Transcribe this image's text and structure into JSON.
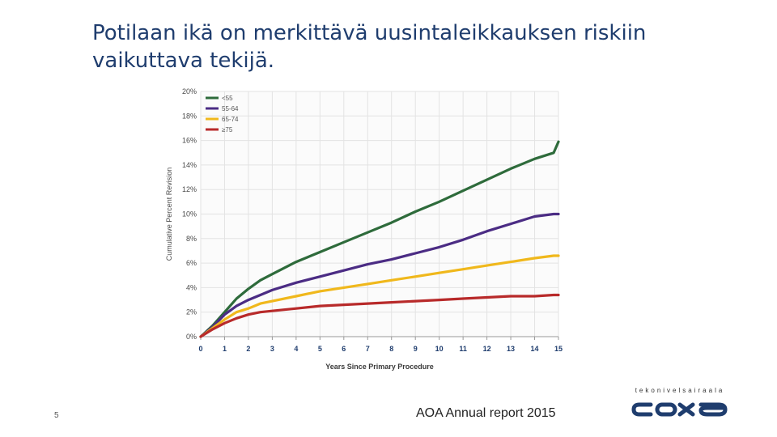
{
  "slide": {
    "title": "Potilaan ikä on merkittävä uusintaleikkauksen riskiin vaikuttava tekijä.",
    "page_number": "5",
    "source": "AOA Annual report 2015"
  },
  "logo": {
    "tagline": "tekonivelsairaala",
    "mark_text": "coxa",
    "color": "#1f3d6e"
  },
  "chart_data": {
    "type": "line",
    "title": "",
    "xlabel": "Years Since Primary Procedure",
    "ylabel": "Cumulative Percent Revision",
    "xlim": [
      0,
      15
    ],
    "ylim": [
      0,
      20
    ],
    "x_ticks": [
      "0",
      "1",
      "2",
      "3",
      "4",
      "5",
      "6",
      "7",
      "8",
      "9",
      "10",
      "11",
      "12",
      "13",
      "14",
      "15"
    ],
    "y_ticks": [
      "0%",
      "2%",
      "4%",
      "6%",
      "8%",
      "10%",
      "12%",
      "14%",
      "16%",
      "18%",
      "20%"
    ],
    "grid": true,
    "legend_position": "top-left",
    "x": [
      0,
      0.5,
      1,
      1.5,
      2,
      2.5,
      3,
      4,
      5,
      6,
      7,
      8,
      9,
      10,
      11,
      12,
      13,
      14,
      14.8,
      15
    ],
    "series": [
      {
        "name": "<55",
        "color": "#2e6b3b",
        "values": [
          0,
          0.9,
          2.0,
          3.1,
          3.9,
          4.6,
          5.1,
          6.1,
          6.9,
          7.7,
          8.5,
          9.3,
          10.2,
          11.0,
          11.9,
          12.8,
          13.7,
          14.5,
          15.0,
          15.9
        ]
      },
      {
        "name": "55-64",
        "color": "#4b2c84",
        "values": [
          0,
          0.8,
          1.8,
          2.5,
          3.0,
          3.4,
          3.8,
          4.4,
          4.9,
          5.4,
          5.9,
          6.3,
          6.8,
          7.3,
          7.9,
          8.6,
          9.2,
          9.8,
          10.0,
          10.0
        ]
      },
      {
        "name": "65-74",
        "color": "#f0b81c",
        "values": [
          0,
          0.7,
          1.4,
          2.0,
          2.3,
          2.7,
          2.9,
          3.3,
          3.7,
          4.0,
          4.3,
          4.6,
          4.9,
          5.2,
          5.5,
          5.8,
          6.1,
          6.4,
          6.6,
          6.6
        ]
      },
      {
        "name": "≥75",
        "color": "#b82a2a",
        "values": [
          0,
          0.6,
          1.1,
          1.5,
          1.8,
          2.0,
          2.1,
          2.3,
          2.5,
          2.6,
          2.7,
          2.8,
          2.9,
          3.0,
          3.1,
          3.2,
          3.3,
          3.3,
          3.4,
          3.4
        ]
      }
    ]
  }
}
